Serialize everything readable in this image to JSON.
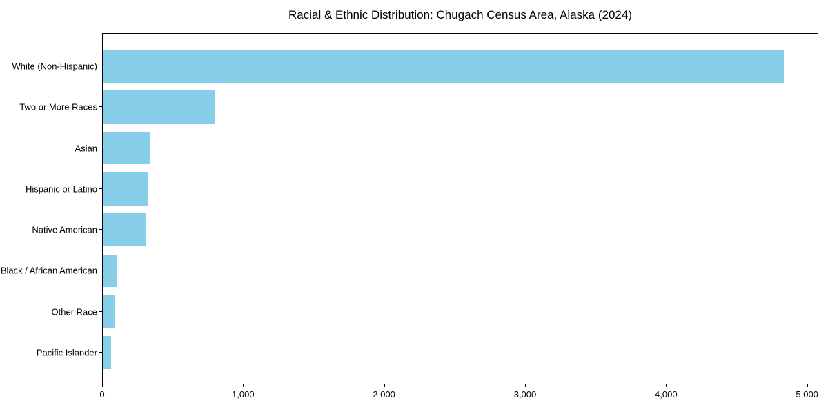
{
  "figure": {
    "background": "#ffffff"
  },
  "chart_data": {
    "type": "bar",
    "orientation": "horizontal",
    "title": "Racial & Ethnic Distribution: Chugach Census Area, Alaska (2024)",
    "categories": [
      "White (Non-Hispanic)",
      "Two or More Races",
      "Asian",
      "Hispanic or Latino",
      "Native American",
      "Black / African American",
      "Other Race",
      "Pacific Islander"
    ],
    "values": [
      4830,
      800,
      335,
      325,
      310,
      100,
      85,
      60
    ],
    "xlabel": "",
    "ylabel": "",
    "xlim": [
      0,
      5080
    ],
    "x_ticks": [
      0,
      1000,
      2000,
      3000,
      4000,
      5000
    ],
    "x_tick_labels": [
      "0",
      "1,000",
      "2,000",
      "3,000",
      "4,000",
      "5,000"
    ],
    "grid": false,
    "legend": null,
    "bar_color": "#87CEEB",
    "axis_color": "#000000",
    "text_color": "#000000"
  }
}
